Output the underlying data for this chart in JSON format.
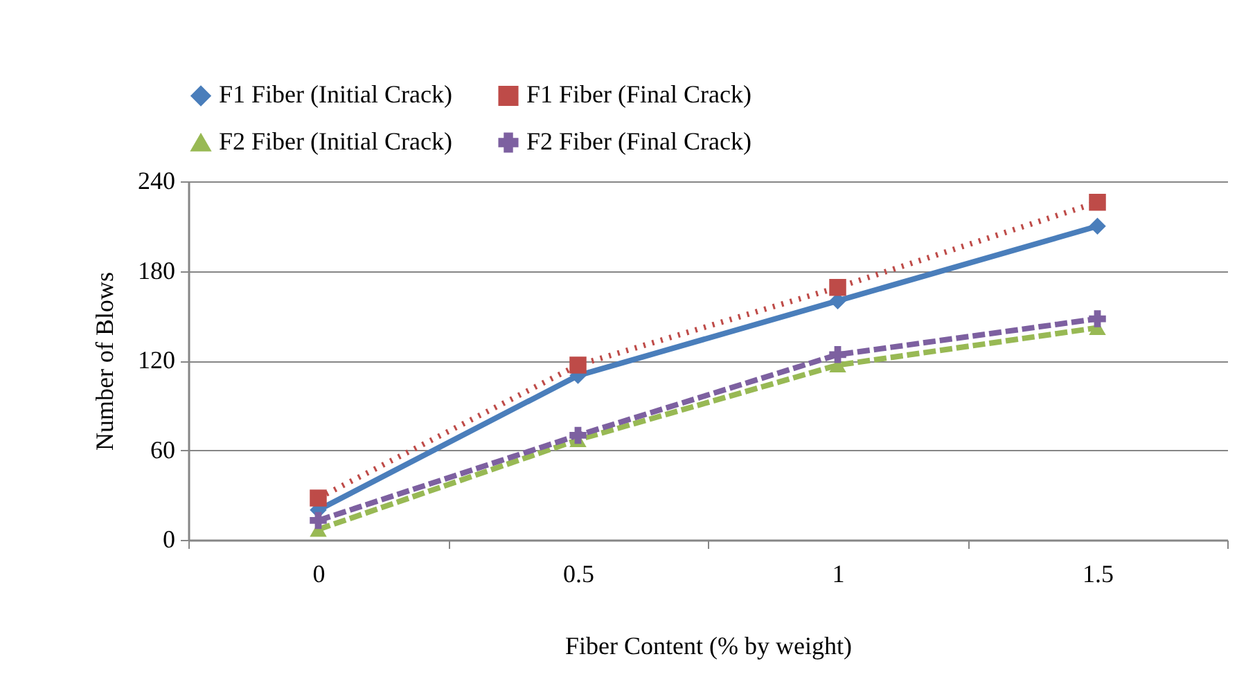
{
  "chart_data": {
    "type": "line",
    "xlabel": "Fiber Content (% by weight)",
    "ylabel": "Number of Blows",
    "categories": [
      "0",
      "0.5",
      "1",
      "1.5"
    ],
    "ylim": [
      0,
      240
    ],
    "yticks": [
      0,
      60,
      120,
      180,
      240
    ],
    "grid": "y",
    "legend": "top",
    "series": [
      {
        "name": "F1 Fiber (Initial Crack)",
        "color": "#4a7ebb",
        "marker": "diamond",
        "line_style": "solid",
        "values": [
          20,
          110,
          160,
          210
        ]
      },
      {
        "name": "F1 Fiber (Final Crack)",
        "color": "#be4b48",
        "marker": "square",
        "line_style": "dotted",
        "values": [
          28,
          117,
          169,
          226
        ]
      },
      {
        "name": "F2 Fiber (Initial Crack)",
        "color": "#98b954",
        "marker": "triangle",
        "line_style": "dashed",
        "values": [
          7,
          67,
          117,
          142
        ]
      },
      {
        "name": "F2 Fiber (Final Crack)",
        "color": "#7d60a0",
        "marker": "cross",
        "line_style": "dashed",
        "values": [
          13,
          70,
          124,
          148
        ]
      }
    ]
  }
}
